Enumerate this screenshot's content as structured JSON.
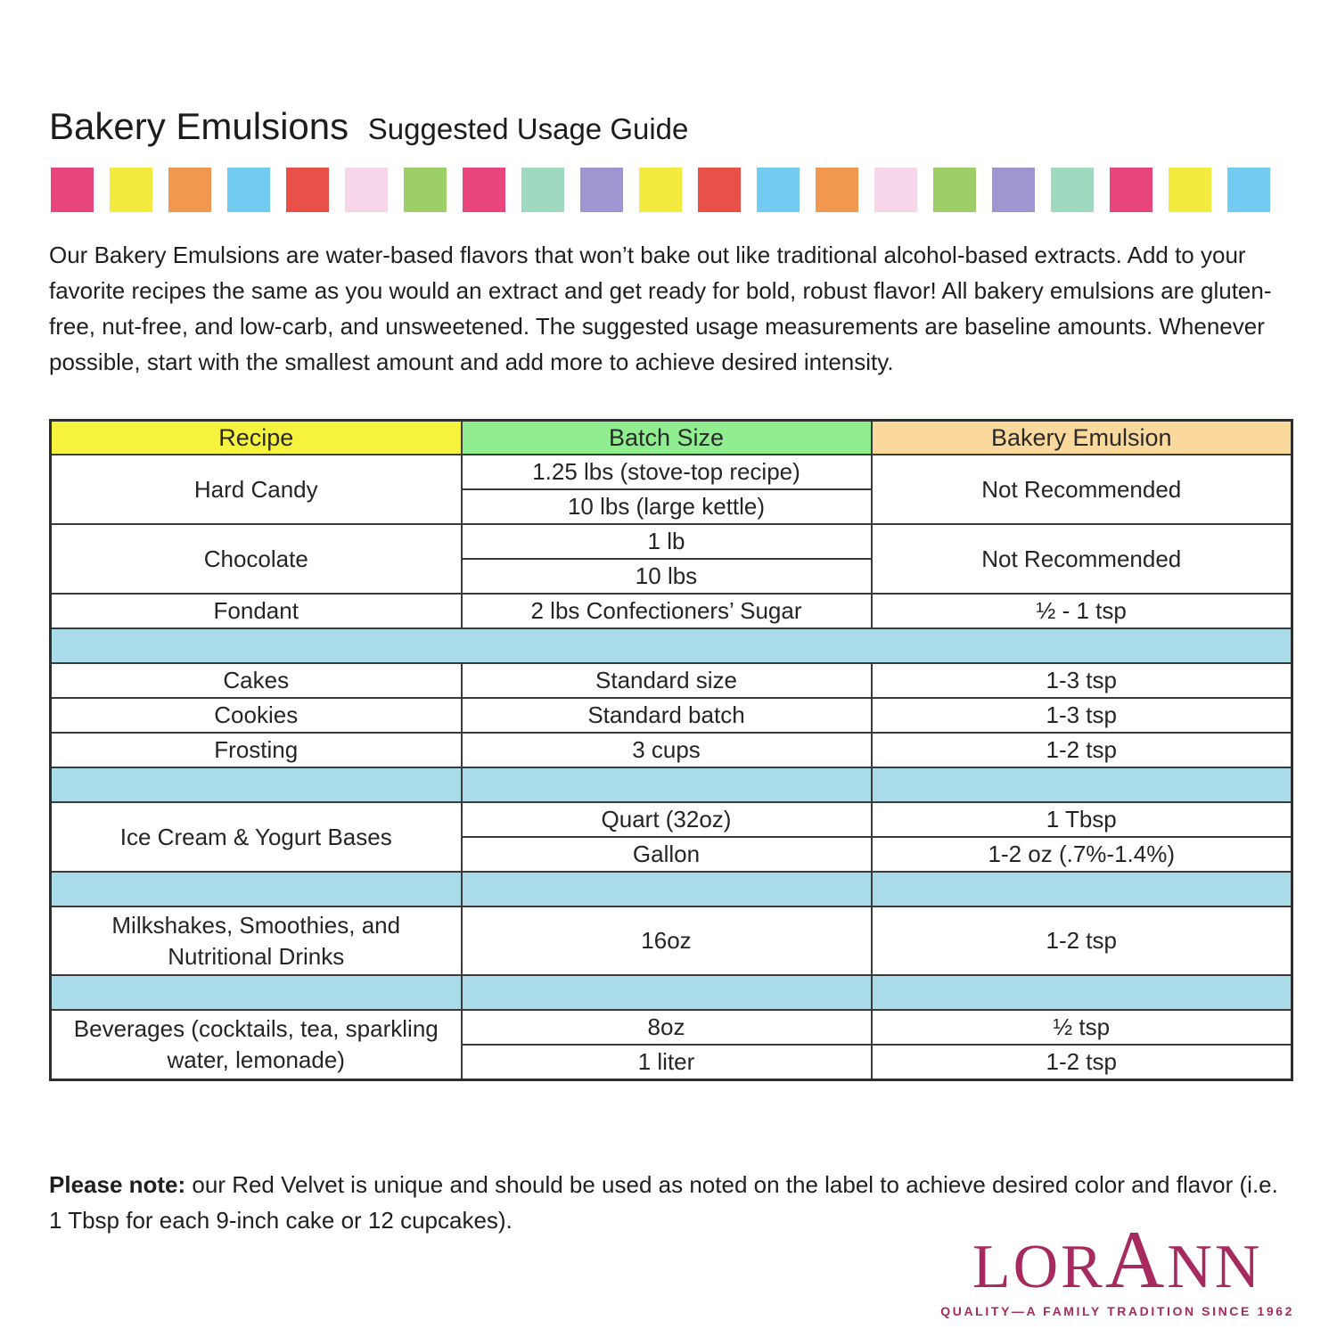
{
  "header": {
    "title_main": "Bakery Emulsions",
    "title_sub": "Suggested Usage Guide"
  },
  "palette_strip": {
    "colors": [
      "#e8457c",
      "#f3ec3e",
      "#f0984f",
      "#72ccf1",
      "#e85048",
      "#f6d7ea",
      "#9ece67",
      "#e8457c",
      "#9fd9bf",
      "#9d96d1",
      "#f3ec3e",
      "#e85048",
      "#72ccf1",
      "#f0984f",
      "#f6d7ea",
      "#9ece67",
      "#9d96d1",
      "#9fd9bf",
      "#e8457c",
      "#f3ec3e",
      "#72ccf1"
    ]
  },
  "intro_text": "Our Bakery Emulsions are water-based flavors that won’t bake out like traditional alcohol-based extracts. Add to your favorite recipes the same as you would an extract and get ready for bold, robust flavor! All bakery emulsions are gluten-free, nut-free, and low-carb, and unsweetened. The suggested usage measurements are baseline amounts. Whenever possible, start with the smallest amount and add more to achieve desired intensity.",
  "table": {
    "header_colors": {
      "recipe": "#f6f33e",
      "batch_size": "#90ee90",
      "bakery_emulsion": "#fbd89b"
    },
    "spacer_color": "#a9dbe9",
    "headers": {
      "recipe": "Recipe",
      "batch_size": "Batch Size",
      "bakery_emulsion": "Bakery Emulsion"
    },
    "rows": {
      "hard_candy": {
        "recipe": "Hard Candy",
        "batch_1": "1.25 lbs (stove-top recipe)",
        "batch_2": "10 lbs (large kettle)",
        "emulsion": "Not Recommended"
      },
      "chocolate": {
        "recipe": "Chocolate",
        "batch_1": "1 lb",
        "batch_2": "10 lbs",
        "emulsion": "Not Recommended"
      },
      "fondant": {
        "recipe": "Fondant",
        "batch": "2 lbs Confectioners’ Sugar",
        "emulsion": "½ - 1 tsp"
      },
      "cakes": {
        "recipe": "Cakes",
        "batch": "Standard size",
        "emulsion": "1-3 tsp"
      },
      "cookies": {
        "recipe": "Cookies",
        "batch": "Standard batch",
        "emulsion": "1-3 tsp"
      },
      "frosting": {
        "recipe": "Frosting",
        "batch": "3 cups",
        "emulsion": "1-2 tsp"
      },
      "ice_cream": {
        "recipe": "Ice Cream & Yogurt Bases",
        "batch_1": "Quart (32oz)",
        "emulsion_1": "1 Tbsp",
        "batch_2": "Gallon",
        "emulsion_2": "1-2 oz (.7%-1.4%)"
      },
      "milkshakes": {
        "recipe": "Milkshakes, Smoothies, and Nutritional Drinks",
        "batch": "16oz",
        "emulsion": "1-2 tsp"
      },
      "beverages": {
        "recipe": "Beverages (cocktails, tea, sparkling water, lemonade)",
        "batch_1": "8oz",
        "emulsion_1": "½ tsp",
        "batch_2": "1 liter",
        "emulsion_2": "1-2 tsp"
      }
    }
  },
  "note": {
    "label": "Please note:",
    "text": " our Red Velvet is unique and should be used as noted on the label to achieve desired color and flavor (i.e. 1 Tbsp for each 9-inch cake or 12 cupcakes)."
  },
  "logo": {
    "color": "#a62a5e",
    "word": [
      "LOR",
      "A",
      "NN"
    ],
    "tagline": "QUALITY—A FAMILY TRADITION SINCE 1962"
  }
}
